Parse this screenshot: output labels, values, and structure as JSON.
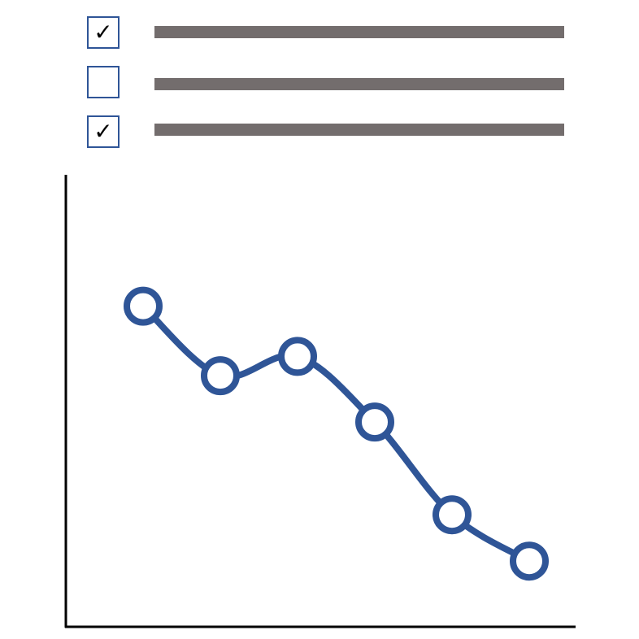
{
  "colors": {
    "checkbox_border": "#2f5597",
    "bar": "#736d6d",
    "line": "#2f5597",
    "axis": "#000000",
    "marker_fill": "#ffffff"
  },
  "checklist": {
    "items": [
      {
        "checked": true,
        "mark": "✓"
      },
      {
        "checked": false,
        "mark": ""
      },
      {
        "checked": true,
        "mark": "✓"
      }
    ]
  },
  "chart_data": {
    "type": "line",
    "smooth": true,
    "markers": "hollow-circle",
    "axes": "left-bottom",
    "grid": false,
    "legend": "none",
    "x": [
      1,
      2,
      3,
      4,
      5,
      6
    ],
    "series": [
      {
        "values": [
          7.6,
          5.8,
          6.3,
          4.6,
          2.2,
          1.0
        ]
      }
    ],
    "xlim": [
      0,
      6.6
    ],
    "ylim": [
      -0.7,
      11.0
    ]
  }
}
